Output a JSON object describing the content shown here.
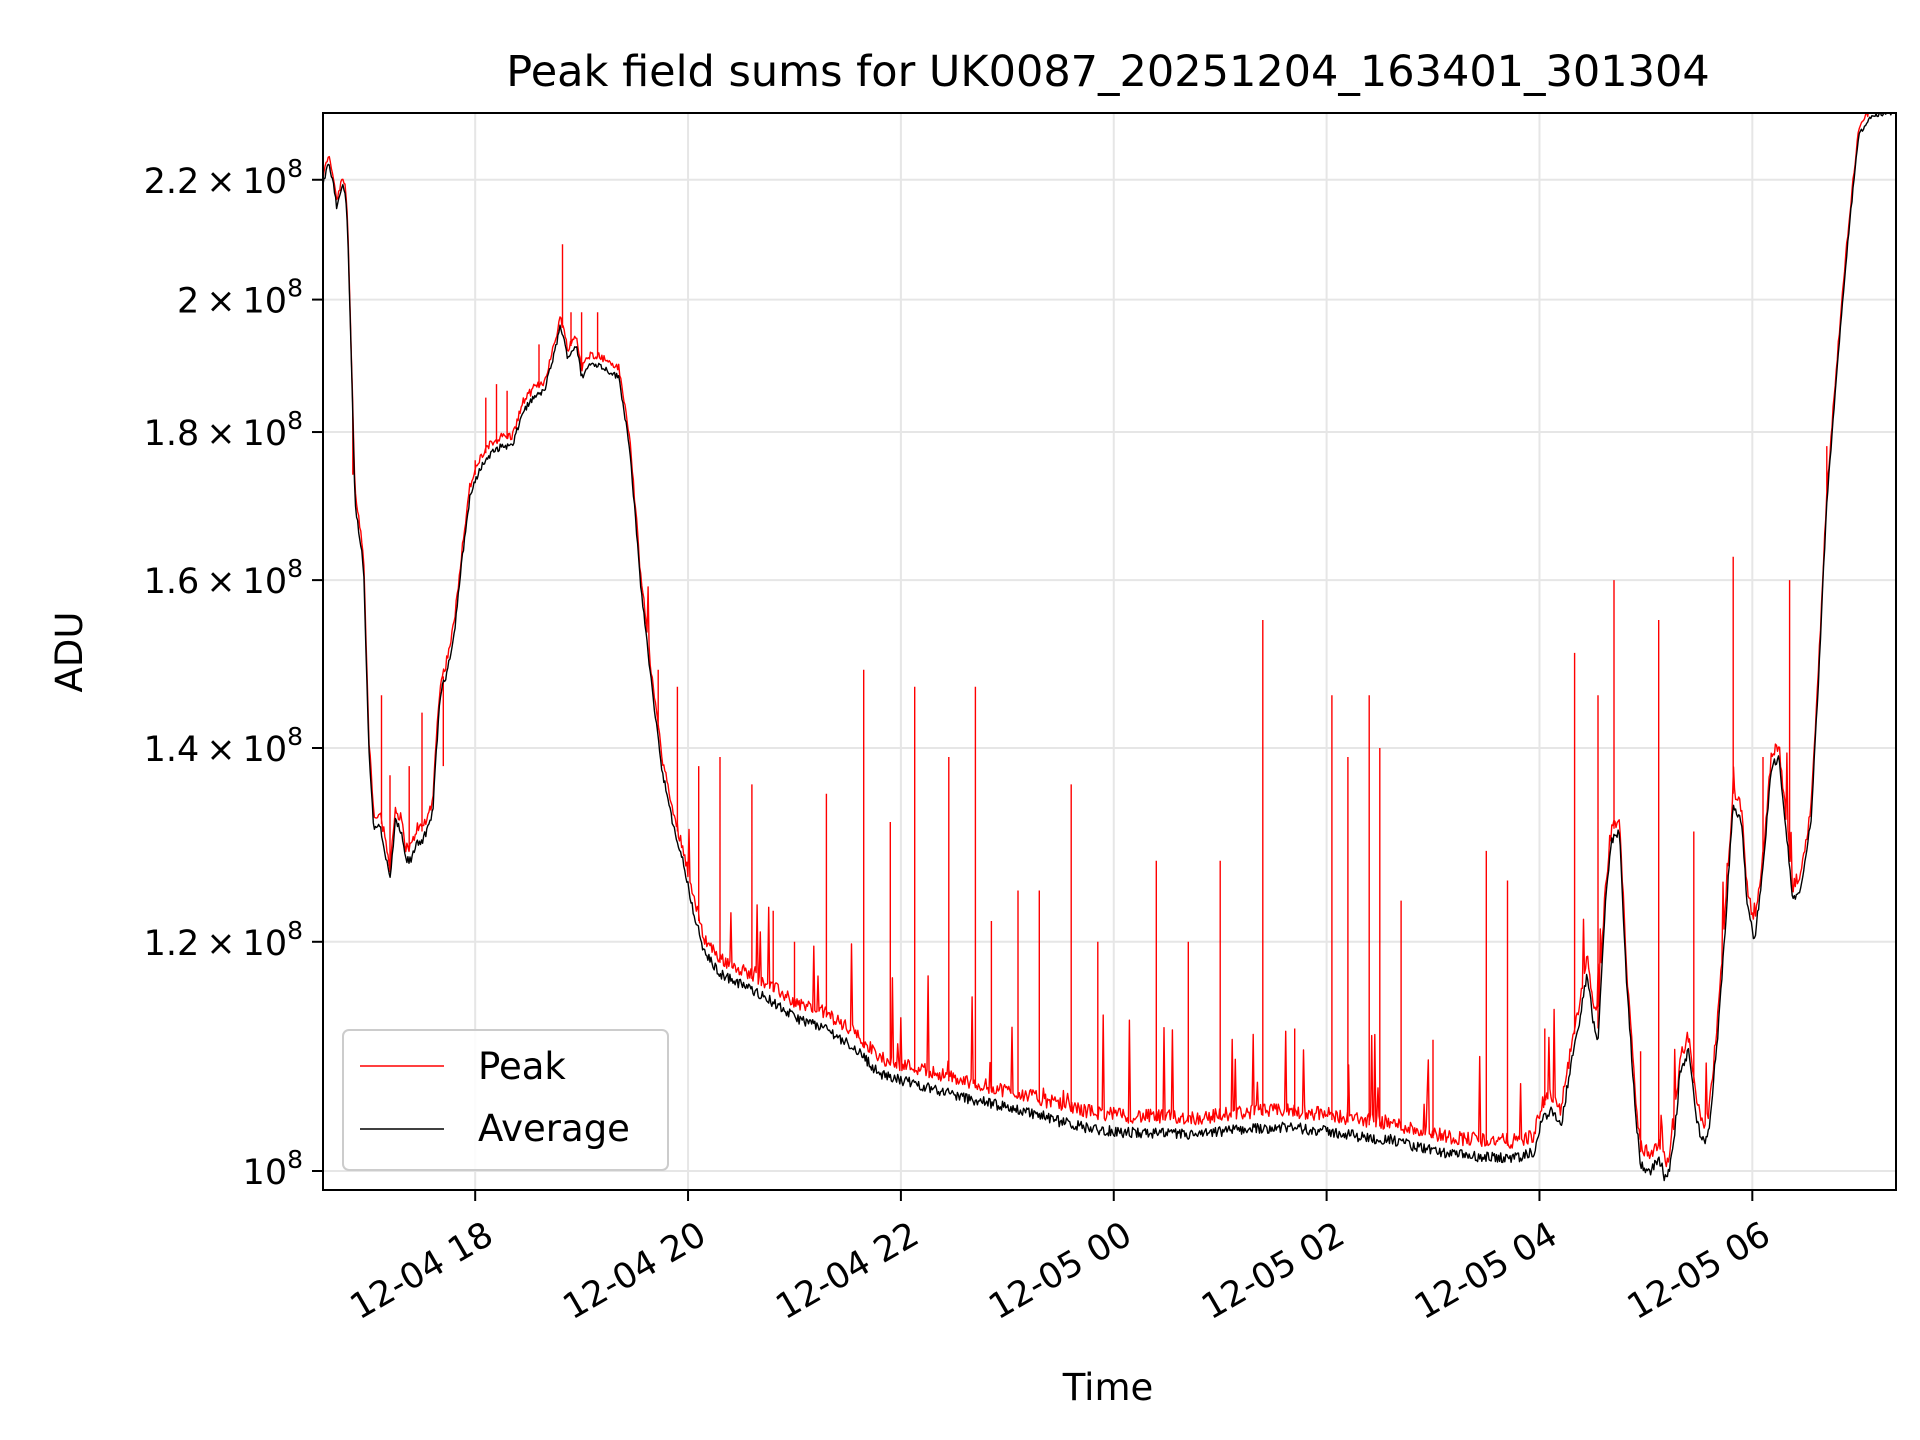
{
  "chart_data": {
    "type": "line",
    "title": "Peak field sums for UK0087_20251204_163401_301304",
    "xlabel": "Time",
    "ylabel": "ADU",
    "yscale": "log",
    "ylim": [
      98500000,
      232000000
    ],
    "xlim_hours": [
      16.57,
      31.35
    ],
    "grid": true,
    "legend_position": "lower-left",
    "x_ticks": [
      {
        "hour": 18,
        "label": "12-04 18"
      },
      {
        "hour": 20,
        "label": "12-04 20"
      },
      {
        "hour": 22,
        "label": "12-04 22"
      },
      {
        "hour": 24,
        "label": "12-05 00"
      },
      {
        "hour": 26,
        "label": "12-05 02"
      },
      {
        "hour": 28,
        "label": "12-05 04"
      },
      {
        "hour": 30,
        "label": "12-05 06"
      }
    ],
    "y_ticks": [
      {
        "value": 100000000,
        "mantissa": "",
        "exp": "8"
      },
      {
        "value": 120000000,
        "mantissa": "1.2",
        "exp": "8"
      },
      {
        "value": 140000000,
        "mantissa": "1.4",
        "exp": "8"
      },
      {
        "value": 160000000,
        "mantissa": "1.6",
        "exp": "8"
      },
      {
        "value": 180000000,
        "mantissa": "1.8",
        "exp": "8"
      },
      {
        "value": 200000000,
        "mantissa": "2",
        "exp": "8"
      },
      {
        "value": 220000000,
        "mantissa": "2.2",
        "exp": "8"
      }
    ],
    "series": [
      {
        "name": "Peak",
        "color": "#ff0000",
        "spikes": [
          [
            16.85,
            174
          ],
          [
            17.12,
            146
          ],
          [
            17.2,
            137
          ],
          [
            17.38,
            138
          ],
          [
            17.5,
            144
          ],
          [
            17.7,
            138
          ],
          [
            17.85,
            160
          ],
          [
            18.0,
            176
          ],
          [
            18.1,
            185
          ],
          [
            18.2,
            187
          ],
          [
            18.3,
            186
          ],
          [
            18.6,
            193
          ],
          [
            18.82,
            209
          ],
          [
            18.9,
            198
          ],
          [
            19.0,
            198
          ],
          [
            19.15,
            198
          ],
          [
            19.5,
            170
          ],
          [
            19.72,
            149
          ],
          [
            19.9,
            147
          ],
          [
            20.1,
            138
          ],
          [
            20.3,
            139
          ],
          [
            20.6,
            136
          ],
          [
            20.8,
            123
          ],
          [
            21.0,
            120
          ],
          [
            21.3,
            135
          ],
          [
            21.65,
            149
          ],
          [
            21.9,
            132
          ],
          [
            22.13,
            147
          ],
          [
            22.45,
            139
          ],
          [
            22.7,
            147
          ],
          [
            22.85,
            122
          ],
          [
            23.1,
            125
          ],
          [
            23.3,
            125
          ],
          [
            23.6,
            136
          ],
          [
            23.85,
            120
          ],
          [
            24.4,
            128
          ],
          [
            24.7,
            120
          ],
          [
            25.0,
            128
          ],
          [
            25.4,
            155
          ],
          [
            25.7,
            112
          ],
          [
            26.05,
            146
          ],
          [
            26.2,
            139
          ],
          [
            26.4,
            146
          ],
          [
            26.5,
            140
          ],
          [
            26.7,
            124
          ],
          [
            27.0,
            111
          ],
          [
            27.5,
            129
          ],
          [
            27.7,
            126
          ],
          [
            28.05,
            112
          ],
          [
            28.33,
            151
          ],
          [
            28.55,
            146
          ],
          [
            28.7,
            160
          ],
          [
            28.95,
            110
          ],
          [
            29.12,
            155
          ],
          [
            29.45,
            131
          ],
          [
            29.82,
            163
          ],
          [
            30.1,
            139
          ],
          [
            30.35,
            160
          ],
          [
            30.7,
            178
          ],
          [
            31.35,
            232
          ]
        ]
      },
      {
        "name": "Average",
        "color": "#000000",
        "points": [
          [
            16.57,
            219
          ],
          [
            16.62,
            223
          ],
          [
            16.67,
            219
          ],
          [
            16.7,
            215
          ],
          [
            16.75,
            219
          ],
          [
            16.78,
            218
          ],
          [
            16.8,
            212
          ],
          [
            16.87,
            170
          ],
          [
            16.9,
            167
          ],
          [
            16.95,
            162
          ],
          [
            17.0,
            140
          ],
          [
            17.05,
            131
          ],
          [
            17.1,
            132
          ],
          [
            17.15,
            129
          ],
          [
            17.2,
            126
          ],
          [
            17.25,
            132
          ],
          [
            17.3,
            131
          ],
          [
            17.35,
            128
          ],
          [
            17.4,
            128
          ],
          [
            17.45,
            130
          ],
          [
            17.5,
            130
          ],
          [
            17.55,
            131
          ],
          [
            17.6,
            133
          ],
          [
            17.67,
            146
          ],
          [
            17.72,
            148
          ],
          [
            17.8,
            153
          ],
          [
            17.88,
            163
          ],
          [
            17.95,
            171
          ],
          [
            18.05,
            175
          ],
          [
            18.15,
            177
          ],
          [
            18.25,
            178
          ],
          [
            18.35,
            178
          ],
          [
            18.45,
            183
          ],
          [
            18.55,
            185
          ],
          [
            18.65,
            186
          ],
          [
            18.75,
            192
          ],
          [
            18.8,
            196
          ],
          [
            18.87,
            191
          ],
          [
            18.95,
            193
          ],
          [
            19.0,
            188
          ],
          [
            19.08,
            190
          ],
          [
            19.15,
            190
          ],
          [
            19.25,
            189
          ],
          [
            19.35,
            188
          ],
          [
            19.45,
            178
          ],
          [
            19.55,
            160
          ],
          [
            19.65,
            148
          ],
          [
            19.75,
            138
          ],
          [
            19.85,
            132
          ],
          [
            19.95,
            128
          ],
          [
            20.05,
            123
          ],
          [
            20.15,
            119
          ],
          [
            20.3,
            117
          ],
          [
            20.5,
            116
          ],
          [
            20.7,
            115
          ],
          [
            21.0,
            113
          ],
          [
            21.3,
            112
          ],
          [
            21.6,
            110
          ],
          [
            21.8,
            108
          ],
          [
            22.0,
            107.5
          ],
          [
            22.3,
            106.8
          ],
          [
            22.6,
            106
          ],
          [
            22.9,
            105.4
          ],
          [
            23.2,
            104.8
          ],
          [
            23.5,
            104
          ],
          [
            23.8,
            103.4
          ],
          [
            24.1,
            103.1
          ],
          [
            24.5,
            103
          ],
          [
            24.8,
            102.9
          ],
          [
            25.1,
            103.3
          ],
          [
            25.4,
            103.5
          ],
          [
            25.7,
            103.5
          ],
          [
            26.0,
            103.2
          ],
          [
            26.3,
            102.8
          ],
          [
            26.6,
            102.5
          ],
          [
            26.9,
            101.8
          ],
          [
            27.2,
            101.3
          ],
          [
            27.5,
            101.1
          ],
          [
            27.8,
            101
          ],
          [
            27.95,
            101.5
          ],
          [
            28.02,
            104
          ],
          [
            28.1,
            105
          ],
          [
            28.2,
            103.5
          ],
          [
            28.3,
            109
          ],
          [
            28.38,
            113
          ],
          [
            28.45,
            117
          ],
          [
            28.5,
            113
          ],
          [
            28.55,
            111
          ],
          [
            28.62,
            124
          ],
          [
            28.68,
            130
          ],
          [
            28.75,
            131
          ],
          [
            28.82,
            116
          ],
          [
            28.9,
            105
          ],
          [
            28.95,
            100.5
          ],
          [
            29.05,
            100
          ],
          [
            29.12,
            101
          ],
          [
            29.2,
            99
          ],
          [
            29.27,
            103
          ],
          [
            29.32,
            108
          ],
          [
            29.4,
            110
          ],
          [
            29.48,
            104
          ],
          [
            29.55,
            102
          ],
          [
            29.6,
            104
          ],
          [
            29.68,
            112
          ],
          [
            29.75,
            122
          ],
          [
            29.82,
            134
          ],
          [
            29.9,
            132
          ],
          [
            29.95,
            124
          ],
          [
            30.02,
            120
          ],
          [
            30.1,
            127
          ],
          [
            30.18,
            138
          ],
          [
            30.25,
            139
          ],
          [
            30.3,
            133
          ],
          [
            30.38,
            124
          ],
          [
            30.45,
            125
          ],
          [
            30.55,
            132
          ],
          [
            30.62,
            147
          ],
          [
            30.7,
            170
          ],
          [
            30.8,
            190
          ],
          [
            30.9,
            210
          ],
          [
            31.0,
            228
          ],
          [
            31.1,
            231
          ],
          [
            31.25,
            232
          ],
          [
            31.35,
            232
          ]
        ]
      }
    ]
  },
  "legend": {
    "peak_label": "Peak",
    "average_label": "Average"
  }
}
